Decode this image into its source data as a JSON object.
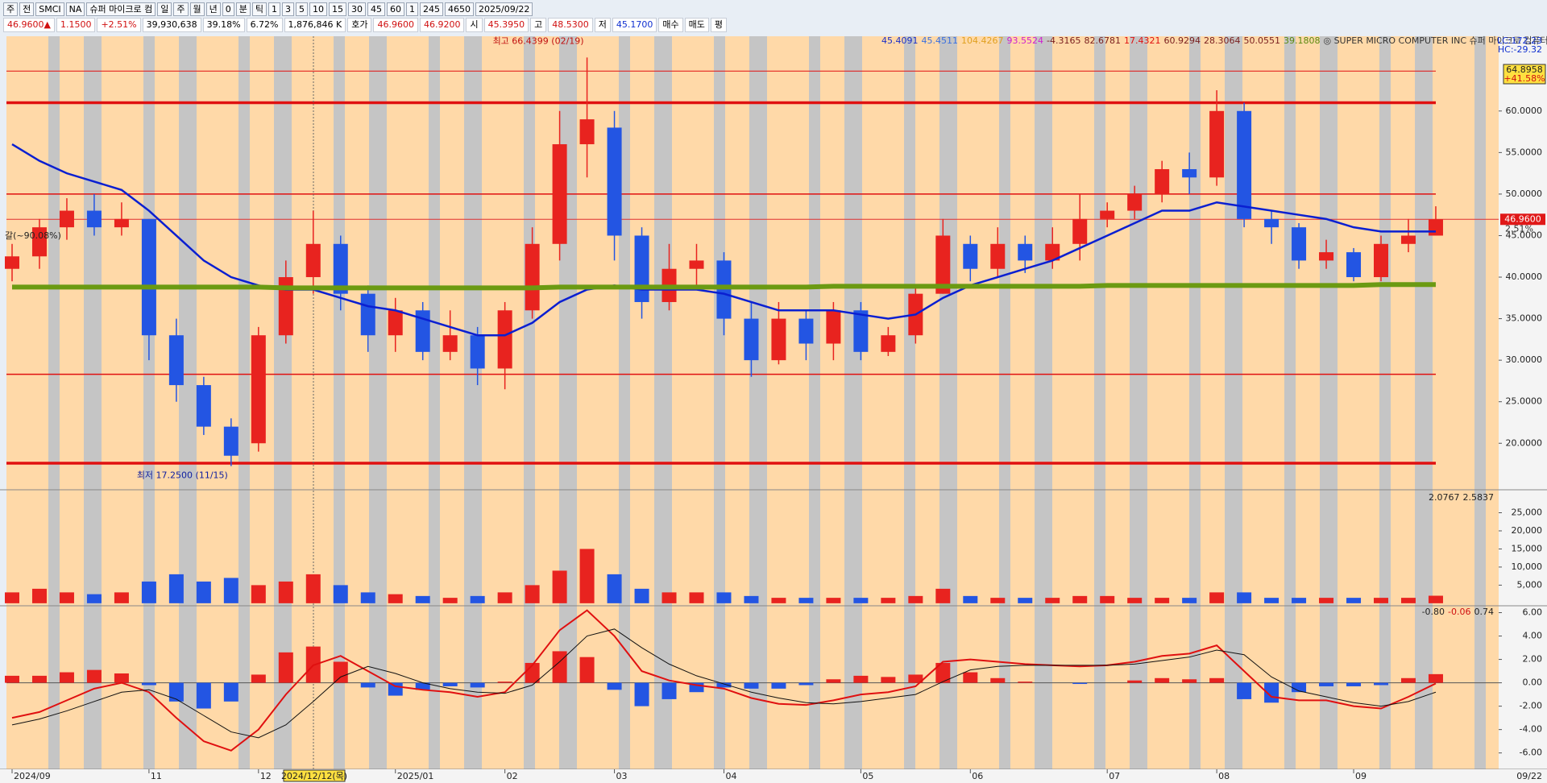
{
  "toolbar": {
    "row1": [
      "주",
      "전",
      "SMCI",
      "NA",
      "슈퍼 마이크로 컴",
      "일",
      "주",
      "월",
      "년",
      "0",
      "분",
      "틱",
      "1",
      "3",
      "5",
      "10",
      "15",
      "30",
      "45",
      "60",
      "1",
      "245",
      "4650",
      "2025/09/22"
    ],
    "row2": [
      "46.9600▲",
      "1.1500",
      "+2.51%",
      "39,930,638",
      "39.18%",
      "6.72%",
      "1,876,846 K",
      "호가",
      "46.9600",
      "46.9200",
      "시",
      "45.3950",
      "고",
      "48.5300",
      "저",
      "45.1700",
      "매수",
      "매도",
      "평"
    ]
  },
  "chart_data": [
    {
      "type": "candlestick",
      "categories": [
        "2024/09",
        null,
        null,
        null,
        null,
        "11",
        null,
        null,
        null,
        "12",
        null,
        null,
        null,
        null,
        "2025/01",
        null,
        null,
        null,
        "02",
        null,
        null,
        null,
        "03",
        null,
        null,
        null,
        "04",
        null,
        null,
        null,
        null,
        "05",
        null,
        null,
        null,
        "06",
        null,
        null,
        null,
        null,
        "07",
        null,
        null,
        null,
        "08",
        null,
        null,
        null,
        null,
        "09",
        null,
        null,
        null
      ],
      "open": [
        41,
        42.5,
        46,
        48,
        46,
        47,
        33,
        27,
        22,
        20,
        33,
        40,
        44,
        38,
        33,
        36,
        31,
        33,
        29,
        36,
        44,
        56,
        58,
        45,
        37,
        41,
        42,
        35,
        30,
        35,
        32,
        36,
        31,
        33,
        38,
        44,
        41,
        44,
        42,
        44,
        47,
        48,
        50,
        53,
        52,
        60,
        47,
        46,
        42,
        43,
        40,
        44,
        45
      ],
      "high": [
        44,
        47,
        49.5,
        50,
        49,
        47,
        35,
        28,
        23,
        34,
        42,
        48,
        45,
        39,
        37.5,
        37,
        36,
        34,
        37,
        46,
        60,
        66.4399,
        60,
        46,
        44,
        44,
        43,
        37,
        37,
        36,
        37,
        37,
        34,
        39,
        47,
        45,
        46,
        45,
        46,
        50,
        49,
        51,
        54,
        55,
        62.5,
        61,
        48,
        46.5,
        44.5,
        43.5,
        45,
        47,
        48.53
      ],
      "low": [
        39.5,
        41,
        44.5,
        45,
        45,
        30,
        25,
        21,
        17.25,
        19,
        32,
        38,
        36,
        31,
        31,
        30,
        30,
        27,
        26.5,
        35,
        42,
        52,
        42,
        35,
        36,
        39,
        33,
        28,
        29.5,
        30,
        30,
        30,
        30.5,
        32,
        38,
        39.5,
        40,
        40.5,
        41,
        42,
        46,
        47,
        49,
        50,
        51,
        46,
        44,
        41,
        41,
        39.5,
        39.5,
        43,
        45.17
      ],
      "close": [
        42.5,
        46,
        48,
        46,
        47,
        33,
        27,
        22,
        18.5,
        33,
        40,
        44,
        38,
        33,
        36,
        31,
        33,
        29,
        36,
        44,
        56,
        59,
        45,
        37,
        41,
        42,
        35,
        30,
        35,
        32,
        36,
        31,
        33,
        38,
        45,
        41,
        44,
        42,
        44,
        47,
        48,
        50,
        53,
        52,
        60,
        47,
        46,
        42,
        43,
        40,
        44,
        45,
        46.96
      ],
      "up_color": "#e8231f",
      "down_color": "#2355e3",
      "series": [
        {
          "color": "#0a1fd1",
          "values": [
            56,
            54,
            52.5,
            51.5,
            50.5,
            48,
            45,
            42,
            40,
            39,
            38.5,
            38.5,
            37.5,
            36.5,
            36,
            35,
            34,
            33,
            33,
            34.5,
            37,
            38.5,
            39,
            38.5,
            38.5,
            38.5,
            38,
            37,
            36,
            36,
            36,
            35.5,
            35,
            35.5,
            37.5,
            39,
            40,
            41,
            42,
            43.5,
            45,
            46.5,
            48,
            48,
            49,
            48.5,
            48,
            47.5,
            47,
            46,
            45.5,
            45.5,
            45.5
          ]
        },
        {
          "color": "#6b9a12",
          "values": [
            38.8,
            38.8,
            38.8,
            38.8,
            38.8,
            38.8,
            38.8,
            38.8,
            38.8,
            38.8,
            38.7,
            38.7,
            38.7,
            38.7,
            38.7,
            38.7,
            38.7,
            38.7,
            38.7,
            38.7,
            38.8,
            38.8,
            38.8,
            38.8,
            38.8,
            38.8,
            38.8,
            38.8,
            38.8,
            38.8,
            38.9,
            38.9,
            38.9,
            38.9,
            38.9,
            38.9,
            38.9,
            38.9,
            38.9,
            38.9,
            39.0,
            39.0,
            39.0,
            39.0,
            39.0,
            39.0,
            39.0,
            39.0,
            39.0,
            39.0,
            39.1,
            39.1,
            39.1
          ]
        }
      ],
      "reference_lines": [
        64.8,
        61,
        50,
        28.3,
        17.6
      ],
      "reference_color": "#e01010",
      "last_price": {
        "value": 46.96,
        "label": "46.9600"
      },
      "last_change": "2.51%",
      "high_label": "최고 66.4399 (02/19)",
      "low_label": "최저 17.2500 (11/15)",
      "left_label": "갈(~90.08%)",
      "cursor_label": "2024/12/12(목)",
      "end_label": "09/22",
      "legend_items": [
        {
          "text": "45.4091",
          "color": "#1a2fc8"
        },
        {
          "text": "45.4511",
          "color": "#3a6fe0"
        },
        {
          "text": "104.4267",
          "color": "#e0a020"
        },
        {
          "text": "93.5524",
          "color": "#d020d0"
        },
        {
          "text": "-4.3165",
          "color": "#7a2020"
        },
        {
          "text": "82.6781",
          "color": "#7a2020"
        },
        {
          "text": "17.4321",
          "color": "#e01010"
        },
        {
          "text": "60.9294",
          "color": "#7a2020"
        },
        {
          "text": "28.3064",
          "color": "#7a2020"
        },
        {
          "text": "50.0551",
          "color": "#7a2020"
        },
        {
          "text": "39.1808",
          "color": "#5a8a10"
        },
        {
          "text": "◎ SUPER MICRO COMPUTER INC  슈퍼 마이크로 컴퓨터",
          "color": "#333333"
        }
      ],
      "right_labels": [
        "LC:172.23",
        "HC:-29.32"
      ],
      "range_box": [
        "64.8958",
        "+41.58%"
      ],
      "ylim": [
        14.4,
        69
      ],
      "yticks": [
        {
          "value": 20,
          "label": "20.0000"
        },
        {
          "value": 25,
          "label": "25.0000"
        },
        {
          "value": 30,
          "label": "30.0000"
        },
        {
          "value": 35,
          "label": "35.0000"
        },
        {
          "value": 40,
          "label": "40.0000"
        },
        {
          "value": 45,
          "label": "45.0000"
        },
        {
          "value": 50,
          "label": "50.0000"
        },
        {
          "value": 55,
          "label": "55.0000"
        },
        {
          "value": 60,
          "label": "60.0000"
        }
      ]
    },
    {
      "type": "bar",
      "values": [
        3000,
        4000,
        3000,
        2500,
        3000,
        6000,
        8000,
        6000,
        7000,
        5000,
        6000,
        8000,
        5000,
        3000,
        2500,
        2000,
        1500,
        2000,
        3000,
        5000,
        9000,
        15000,
        8000,
        4000,
        3000,
        3000,
        3000,
        2000,
        1500,
        1500,
        1500,
        1500,
        1500,
        2000,
        4000,
        2000,
        1500,
        1500,
        1500,
        2000,
        2000,
        1500,
        1500,
        1500,
        3000,
        3000,
        1500,
        1500,
        1500,
        1500,
        1500,
        1500,
        2077
      ],
      "header": [
        "2.0767",
        "2.5837"
      ],
      "ylim": [
        -700,
        30900
      ],
      "yticks": [
        {
          "value": 5000,
          "label": "5,000"
        },
        {
          "value": 10000,
          "label": "10,000"
        },
        {
          "value": 15000,
          "label": "15,000"
        },
        {
          "value": 20000,
          "label": "20,000"
        },
        {
          "value": 25000,
          "label": "25,000"
        }
      ]
    },
    {
      "type": "macd",
      "series": [
        {
          "color": "#e01010",
          "values": [
            -3,
            -2.5,
            -1.5,
            -0.5,
            0,
            -0.8,
            -3,
            -5,
            -5.8,
            -4,
            -1,
            1.5,
            2.3,
            1,
            -0.3,
            -0.6,
            -0.8,
            -1.2,
            -0.8,
            1.5,
            4.5,
            6.2,
            4,
            1,
            0.2,
            -0.2,
            -0.5,
            -1.3,
            -1.8,
            -1.9,
            -1.5,
            -1,
            -0.8,
            -0.3,
            1.8,
            2,
            1.8,
            1.6,
            1.5,
            1.4,
            1.5,
            1.8,
            2.3,
            2.5,
            3.2,
            1,
            -1.2,
            -1.5,
            -1.5,
            -2,
            -2.2,
            -1.2,
            -0.06
          ]
        },
        {
          "color": "#111111",
          "values": [
            -3.6,
            -3.1,
            -2.4,
            -1.6,
            -0.8,
            -0.6,
            -1.4,
            -2.8,
            -4.2,
            -4.7,
            -3.6,
            -1.6,
            0.5,
            1.4,
            0.8,
            0,
            -0.5,
            -0.8,
            -0.9,
            -0.2,
            1.8,
            4,
            4.6,
            3,
            1.6,
            0.6,
            -0.1,
            -0.8,
            -1.3,
            -1.7,
            -1.8,
            -1.6,
            -1.3,
            -1,
            0.1,
            1.1,
            1.4,
            1.5,
            1.5,
            1.5,
            1.5,
            1.6,
            1.9,
            2.2,
            2.8,
            2.4,
            0.5,
            -0.7,
            -1.2,
            -1.7,
            -2,
            -1.6,
            -0.8
          ]
        }
      ],
      "histogram": [
        0.6,
        0.6,
        0.9,
        1.1,
        0.8,
        -0.2,
        -1.6,
        -2.2,
        -1.6,
        0.7,
        2.6,
        3.1,
        1.8,
        -0.4,
        -1.1,
        -0.6,
        -0.3,
        -0.4,
        0.1,
        1.7,
        2.7,
        2.2,
        -0.6,
        -2,
        -1.4,
        -0.8,
        -0.4,
        -0.5,
        -0.5,
        -0.2,
        0.3,
        0.6,
        0.5,
        0.7,
        1.7,
        0.9,
        0.4,
        0.1,
        0,
        -0.1,
        0,
        0.2,
        0.4,
        0.3,
        0.4,
        -1.4,
        -1.7,
        -0.8,
        -0.3,
        -0.3,
        -0.2,
        0.4,
        0.74
      ],
      "header": [
        "-0.80",
        "-0.06",
        "0.74"
      ],
      "ylim": [
        -7.4,
        6.45
      ],
      "yticks": [
        {
          "value": -6,
          "label": "-6.00"
        },
        {
          "value": -4,
          "label": "-4.00"
        },
        {
          "value": -2,
          "label": "-2.00"
        },
        {
          "value": 0,
          "label": "0.00"
        },
        {
          "value": 2,
          "label": "2.00"
        },
        {
          "value": 4,
          "label": "4.00"
        },
        {
          "value": 6,
          "label": "6.00"
        }
      ]
    }
  ]
}
